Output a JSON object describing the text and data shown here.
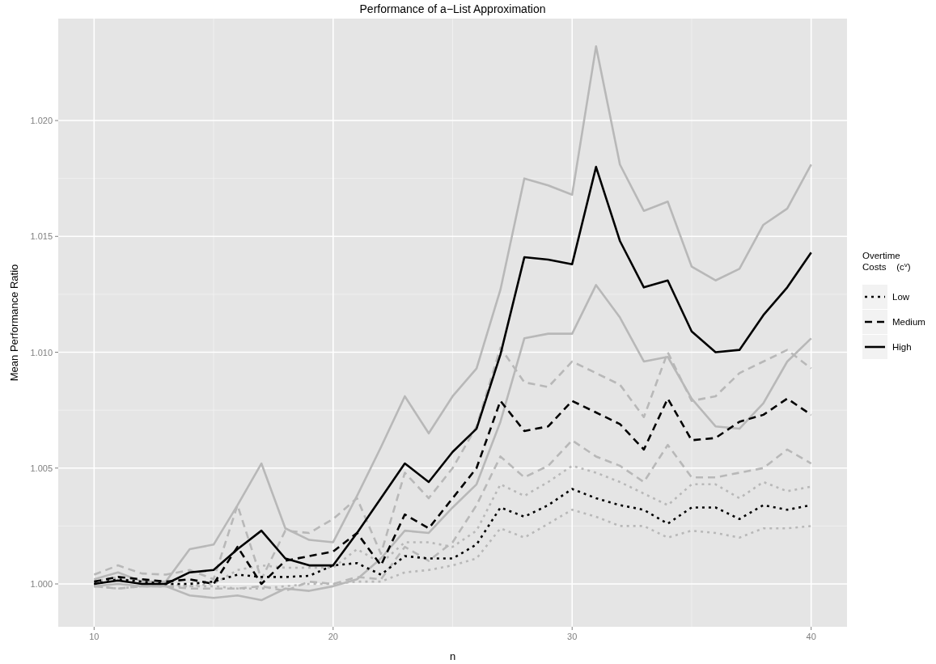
{
  "chart_data": {
    "type": "line",
    "title": "Performance of a−List Approximation",
    "xlabel": "n",
    "ylabel": "Mean Performance Ratio",
    "legend_title": "Overtime\nCosts    (c$^{v}$)",
    "x": [
      10,
      11,
      12,
      13,
      14,
      15,
      16,
      17,
      18,
      19,
      20,
      21,
      22,
      23,
      24,
      25,
      26,
      27,
      28,
      29,
      30,
      31,
      32,
      33,
      34,
      35,
      36,
      37,
      38,
      39,
      40
    ],
    "xlim": [
      8.5,
      41.5
    ],
    "ylim": [
      0.99815,
      1.0244
    ],
    "xticks": [
      10,
      20,
      30,
      40
    ],
    "yticks": [
      {
        "value": 1,
        "label": "1.000"
      },
      {
        "value": 1.005,
        "label": "1.005"
      },
      {
        "value": 1.01,
        "label": "1.010"
      },
      {
        "value": 1.015,
        "label": "1.015"
      },
      {
        "value": 1.02,
        "label": "1.020"
      }
    ],
    "grid": true,
    "legend": "right",
    "series": [
      {
        "color": "#b8b8b8",
        "line_style": "dotted",
        "values": [
          1.0001,
          1.0003,
          1.0,
          1.0,
          0.9999,
          1.0,
          1.0006,
          1.0008,
          1.0007,
          1.0007,
          1.0007,
          1.0015,
          1.0009,
          1.0018,
          1.0018,
          1.0016,
          1.0023,
          1.0043,
          1.0038,
          1.0044,
          1.0051,
          1.0048,
          1.0044,
          1.0039,
          1.0034,
          1.0043,
          1.0043,
          1.0037,
          1.0044,
          1.004,
          1.0042
        ]
      },
      {
        "color": "#b8b8b8",
        "line_style": "dotted",
        "values": [
          0.9999,
          0.9998,
          0.9999,
          0.9999,
          0.9999,
          0.9999,
          0.9998,
          0.9998,
          0.9999,
          1.0,
          1.0,
          1.0001,
          1.0001,
          1.0005,
          1.0006,
          1.0008,
          1.0011,
          1.0024,
          1.002,
          1.0026,
          1.0032,
          1.0029,
          1.0025,
          1.0025,
          1.002,
          1.0023,
          1.0022,
          1.002,
          1.0024,
          1.0024,
          1.0025
        ]
      },
      {
        "color": "#b8b8b8",
        "line_style": "dashed",
        "values": [
          1.0004,
          1.0008,
          1.00045,
          1.0004,
          1.0006,
          1.0002,
          1.0034,
          1.0002,
          1.0023,
          1.0022,
          1.0028,
          1.0037,
          1.0013,
          1.0048,
          1.0037,
          1.005,
          1.0068,
          1.0102,
          1.0087,
          1.0085,
          1.0096,
          1.0091,
          1.0086,
          1.0072,
          1.01,
          1.0079,
          1.0081,
          1.0091,
          1.0096,
          1.0101,
          1.0093
        ]
      },
      {
        "color": "#b8b8b8",
        "line_style": "dashed",
        "values": [
          0.9999,
          0.9998,
          0.9999,
          0.9999,
          0.9998,
          0.9998,
          0.9998,
          0.9999,
          0.9997,
          1.0001,
          1.0,
          1.0003,
          1.0002,
          1.0016,
          1.001,
          1.0018,
          1.0034,
          1.0055,
          1.0046,
          1.0051,
          1.0062,
          1.0055,
          1.0051,
          1.0044,
          1.006,
          1.0046,
          1.0046,
          1.0048,
          1.005,
          1.0058,
          1.0052
        ]
      },
      {
        "color": "#b8b8b8",
        "line_style": "solid",
        "values": [
          1.0002,
          1.0005,
          1.0001,
          1.0001,
          1.0015,
          1.0017,
          1.0034,
          1.0052,
          1.0024,
          1.0019,
          1.0018,
          1.0038,
          1.0059,
          1.0081,
          1.0065,
          1.0081,
          1.0093,
          1.0127,
          1.0175,
          1.0172,
          1.0168,
          1.0232,
          1.0181,
          1.0161,
          1.0165,
          1.0137,
          1.0131,
          1.0136,
          1.0155,
          1.0162,
          1.0181
        ]
      },
      {
        "color": "#b8b8b8",
        "line_style": "solid",
        "values": [
          0.9999,
          1.0,
          0.9999,
          0.9999,
          0.9995,
          0.9994,
          0.9995,
          0.9993,
          0.9998,
          0.9997,
          0.9999,
          1.0002,
          1.0011,
          1.0023,
          1.0022,
          1.0033,
          1.0043,
          1.007,
          1.0106,
          1.0108,
          1.0108,
          1.0129,
          1.0115,
          1.0096,
          1.0098,
          1.008,
          1.0068,
          1.0067,
          1.0078,
          1.0096,
          1.0106
        ]
      },
      {
        "name": "Low",
        "color": "#000000",
        "line_style": "dotted",
        "values": [
          1.0,
          1.0002,
          1.0001,
          1.0,
          1.0,
          1.0001,
          1.0004,
          1.0003,
          1.0003,
          1.00035,
          1.0008,
          1.0009,
          1.0004,
          1.0012,
          1.0011,
          1.0011,
          1.0017,
          1.0033,
          1.0029,
          1.0034,
          1.0041,
          1.0037,
          1.0034,
          1.0032,
          1.0026,
          1.0033,
          1.0033,
          1.0028,
          1.0034,
          1.0032,
          1.0034
        ]
      },
      {
        "name": "Medium",
        "color": "#000000",
        "line_style": "dashed",
        "values": [
          1.0001,
          1.0003,
          1.0002,
          1.0001,
          1.0002,
          1.0,
          1.0016,
          1.0,
          1.001,
          1.0012,
          1.0014,
          1.0022,
          1.0008,
          1.003,
          1.0024,
          1.0037,
          1.005,
          1.0079,
          1.0066,
          1.0068,
          1.0079,
          1.0074,
          1.0069,
          1.0058,
          1.008,
          1.0062,
          1.0063,
          1.007,
          1.0073,
          1.008,
          1.0073
        ]
      },
      {
        "name": "High",
        "color": "#000000",
        "line_style": "solid",
        "values": [
          1.0,
          1.00015,
          1.0,
          1.0,
          1.0005,
          1.0006,
          1.0015,
          1.0023,
          1.0011,
          1.0008,
          1.0008,
          1.0022,
          1.0037,
          1.0052,
          1.0044,
          1.0057,
          1.0067,
          1.0099,
          1.0141,
          1.014,
          1.0138,
          1.018,
          1.0148,
          1.0128,
          1.0131,
          1.0109,
          1.01,
          1.0101,
          1.0116,
          1.0128,
          1.0143
        ]
      }
    ]
  }
}
